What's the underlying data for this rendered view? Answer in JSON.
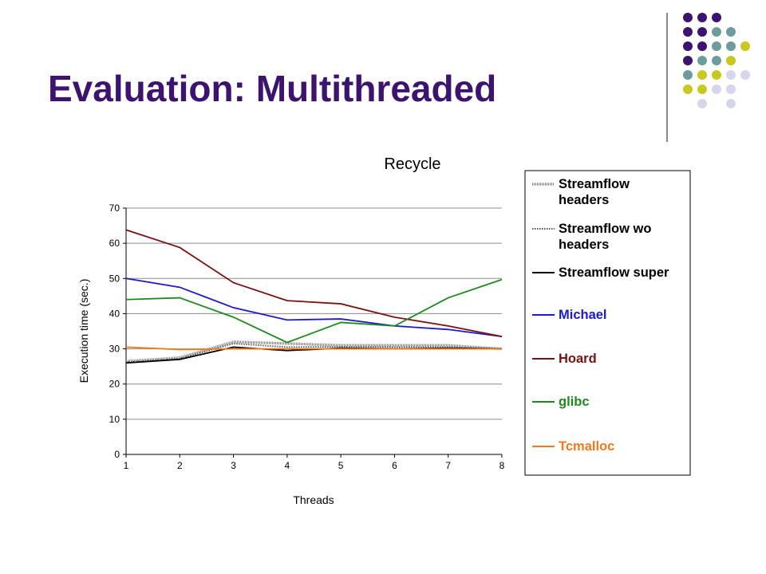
{
  "slide": {
    "title": "Evaluation: Multithreaded"
  },
  "decoration": {
    "colors": {
      "purple": "#3d1370",
      "teal": "#6e9c9c",
      "olive": "#c8c81e",
      "lavender": "#d6d6ea"
    }
  },
  "chart_data": {
    "type": "line",
    "title": "Recycle",
    "xlabel": "Threads",
    "ylabel": "Execution time (sec.)",
    "x": [
      1,
      2,
      3,
      4,
      5,
      6,
      7,
      8
    ],
    "ylim": [
      0,
      70
    ],
    "yticks": [
      0,
      10,
      20,
      30,
      40,
      50,
      60,
      70
    ],
    "grid": "horizontal",
    "legend_position": "right",
    "series": [
      {
        "name": "Streamflow headers",
        "color": "#777777",
        "style": "hatched",
        "legend_color": "#000000",
        "values": [
          26.5,
          27.5,
          32,
          31.5,
          31,
          31,
          31,
          30
        ]
      },
      {
        "name": "Streamflow wo headers",
        "color": "#555555",
        "style": "dotted",
        "legend_color": "#000000",
        "values": [
          26.2,
          27.2,
          31.5,
          30.5,
          30.6,
          30.5,
          30.5,
          30
        ]
      },
      {
        "name": "Streamflow super",
        "color": "#000000",
        "style": "solid",
        "legend_color": "#000000",
        "values": [
          26,
          27,
          30.5,
          29.5,
          30.2,
          30,
          30.2,
          30
        ]
      },
      {
        "name": "Michael",
        "color": "#1a1ad0",
        "style": "solid",
        "legend_color": "#1a1ad0",
        "values": [
          50,
          47.5,
          41.7,
          38.2,
          38.5,
          36.5,
          35.5,
          33.5
        ]
      },
      {
        "name": "Hoard",
        "color": "#7a1010",
        "style": "solid",
        "legend_color": "#7a1010",
        "values": [
          63.8,
          58.8,
          48.8,
          43.7,
          42.8,
          39,
          36.5,
          33.5
        ]
      },
      {
        "name": "glibc",
        "color": "#1e8a1e",
        "style": "solid",
        "legend_color": "#1e8a1e",
        "values": [
          44,
          44.5,
          39,
          31.8,
          37.5,
          36.5,
          44.5,
          49.7
        ]
      },
      {
        "name": "Tcmalloc",
        "color": "#f07a20",
        "style": "solid",
        "legend_color": "#f07a20",
        "values": [
          30.5,
          29.8,
          30,
          30,
          30,
          30,
          30,
          30
        ]
      }
    ]
  }
}
